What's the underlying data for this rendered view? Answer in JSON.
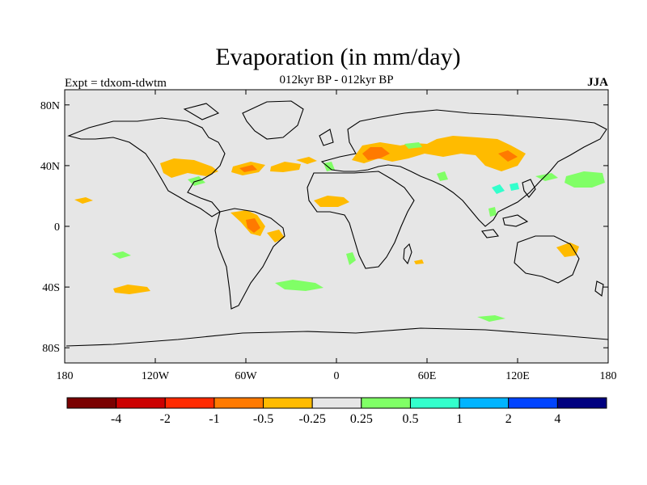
{
  "title": "Evaporation (in mm/day)",
  "subtitle": "012kyr BP - 012kyr BP",
  "left_label": "Expt = tdxom-tdwtm",
  "right_label": "JJA",
  "lat_ticks": [
    {
      "lat": 80,
      "label": "80N"
    },
    {
      "lat": 40,
      "label": "40N"
    },
    {
      "lat": 0,
      "label": "0"
    },
    {
      "lat": -40,
      "label": "40S"
    },
    {
      "lat": -80,
      "label": "80S"
    }
  ],
  "lon_ticks": [
    {
      "lon": -180,
      "label": "180"
    },
    {
      "lon": -120,
      "label": "120W"
    },
    {
      "lon": -60,
      "label": "60W"
    },
    {
      "lon": 0,
      "label": "0"
    },
    {
      "lon": 60,
      "label": "60E"
    },
    {
      "lon": 120,
      "label": "120E"
    },
    {
      "lon": 180,
      "label": "180"
    }
  ],
  "colorbar": {
    "colors": [
      "#7a0000",
      "#cc0000",
      "#ff2a00",
      "#ff7a00",
      "#ffbb00",
      "#e6e6e6",
      "#80ff66",
      "#33ffcc",
      "#00b4ff",
      "#0044ff",
      "#000080"
    ],
    "labels": [
      "-4",
      "-2",
      "-1",
      "-0.5",
      "-0.25",
      "0.25",
      "0.5",
      "1",
      "2",
      "4"
    ]
  },
  "map_colors": {
    "background": "#e6e6e6",
    "orange": "#ffbb00",
    "dark_orange": "#ff7a00",
    "green": "#80ff66",
    "cyan": "#33ffcc"
  }
}
